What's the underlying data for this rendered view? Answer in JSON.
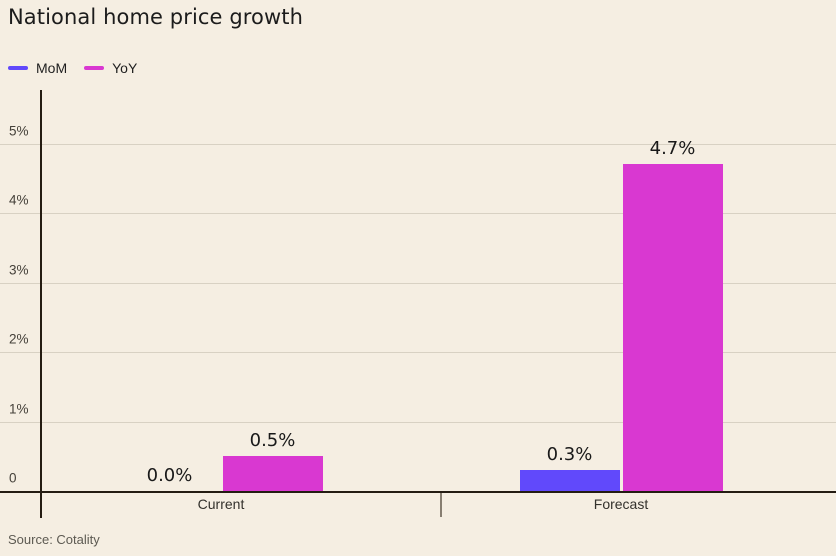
{
  "title": "National home price growth",
  "legend": [
    {
      "label": "MoM",
      "color": "#6149fb"
    },
    {
      "label": "YoY",
      "color": "#d938d1"
    }
  ],
  "source": "Source: Cotality",
  "colors": {
    "background": "#f5eee2",
    "mom_bar": "#6149fb",
    "yoy_bar": "#d938d1",
    "gridline": "#d8d1c3",
    "axis": "#241c12",
    "divider_tick": "#877e71"
  },
  "chart_data": {
    "type": "bar",
    "categories": [
      "Current",
      "Forecast"
    ],
    "series": [
      {
        "name": "MoM",
        "color": "#6149fb",
        "values": [
          0.0,
          0.3
        ],
        "labels": [
          "0.0%",
          "0.3%"
        ]
      },
      {
        "name": "YoY",
        "color": "#d938d1",
        "values": [
          0.5,
          4.7
        ],
        "labels": [
          "0.5%",
          "4.7%"
        ]
      }
    ],
    "y_ticks": [
      {
        "value": 5,
        "label": "5%"
      },
      {
        "value": 4,
        "label": "4%"
      },
      {
        "value": 3,
        "label": "3%"
      },
      {
        "value": 2,
        "label": "2%"
      },
      {
        "value": 1,
        "label": "1%"
      },
      {
        "value": 0,
        "label": "0"
      }
    ],
    "ylim": [
      0,
      5.8
    ],
    "xlabel": "",
    "ylabel": "",
    "grid": "horizontal",
    "legend_position": "top-left",
    "value_label_format": "percent"
  }
}
